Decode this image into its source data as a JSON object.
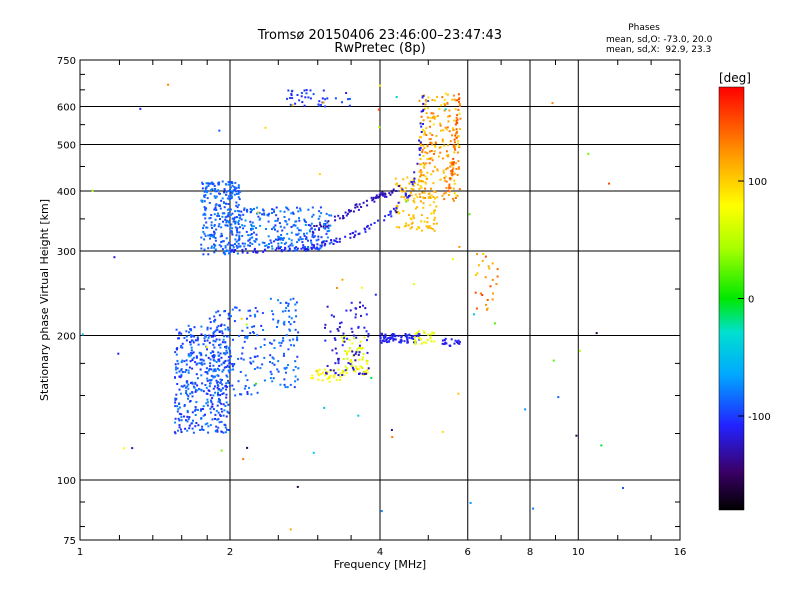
{
  "chart_data": {
    "type": "scatter",
    "title": "Tromsø 20150406 23:46:00–23:47:43",
    "subtitle": "RwPretec (8p)",
    "xlabel": "Frequency [MHz]",
    "ylabel": "Stationary phase Virtual Height [km]",
    "xscale": "log",
    "yscale": "log",
    "xlim": [
      1,
      16
    ],
    "ylim": [
      75,
      750
    ],
    "x_ticks": [
      1,
      2,
      4,
      6,
      8,
      10,
      16
    ],
    "x_tick_labels": [
      "1",
      "2",
      "4",
      "6",
      "8",
      "10",
      "16"
    ],
    "y_ticks": [
      75,
      100,
      200,
      300,
      400,
      500,
      600,
      750
    ],
    "y_tick_labels": [
      "75",
      "100",
      "200",
      "300",
      "400",
      "500",
      "600",
      "750"
    ],
    "grid": true,
    "phases_box": {
      "title": "Phases",
      "line1": "mean, sd,O: -73.0, 20.0",
      "line2": "mean, sd,X:  92.9, 23.3"
    },
    "colorbar": {
      "label": "[deg]",
      "range": [
        -180,
        180
      ],
      "ticks": [
        100,
        0,
        -100
      ],
      "tick_labels": [
        "100",
        "0",
        "-100"
      ]
    },
    "clusters": [
      {
        "fmin": 1.55,
        "fmax": 2.0,
        "hmin": 125,
        "hmax": 210,
        "count": 420,
        "phase_min": -110,
        "phase_max": -75
      },
      {
        "fmin": 1.8,
        "fmax": 2.35,
        "hmin": 150,
        "hmax": 230,
        "count": 140,
        "phase_min": -105,
        "phase_max": -75
      },
      {
        "fmin": 2.4,
        "fmax": 2.75,
        "hmin": 155,
        "hmax": 240,
        "count": 90,
        "phase_min": -100,
        "phase_max": -70
      },
      {
        "fmin": 1.75,
        "fmax": 2.1,
        "hmin": 295,
        "hmax": 420,
        "count": 280,
        "phase_min": -100,
        "phase_max": -75
      },
      {
        "fmin": 2.05,
        "fmax": 3.2,
        "hmin": 300,
        "hmax": 370,
        "count": 260,
        "phase_min": -105,
        "phase_max": -70
      },
      {
        "fmin": 2.9,
        "fmax": 3.4,
        "hmin": 160,
        "hmax": 170,
        "count": 35,
        "phase_min": 70,
        "phase_max": 90
      },
      {
        "fmin": 3.35,
        "fmax": 3.8,
        "hmin": 165,
        "hmax": 200,
        "count": 60,
        "phase_min": 55,
        "phase_max": 95
      },
      {
        "fmin": 3.1,
        "fmax": 3.8,
        "hmin": 165,
        "hmax": 235,
        "count": 80,
        "phase_min": -130,
        "phase_max": -105
      },
      {
        "fmin": 4.0,
        "fmax": 4.8,
        "hmin": 193,
        "hmax": 202,
        "count": 70,
        "phase_min": -120,
        "phase_max": -100
      },
      {
        "fmin": 4.7,
        "fmax": 5.2,
        "hmin": 192,
        "hmax": 205,
        "count": 25,
        "phase_min": 60,
        "phase_max": 80
      },
      {
        "fmin": 5.3,
        "fmax": 5.8,
        "hmin": 190,
        "hmax": 197,
        "count": 20,
        "phase_min": -120,
        "phase_max": -105
      },
      {
        "fmin": 4.3,
        "fmax": 5.2,
        "hmin": 330,
        "hmax": 430,
        "count": 110,
        "phase_min": 95,
        "phase_max": 115
      },
      {
        "fmin": 4.8,
        "fmax": 5.8,
        "hmin": 380,
        "hmax": 640,
        "count": 220,
        "phase_min": 90,
        "phase_max": 140
      },
      {
        "fmin": 2.6,
        "fmax": 3.5,
        "hmin": 600,
        "hmax": 650,
        "count": 40,
        "phase_min": -110,
        "phase_max": -90
      },
      {
        "fmin": 6.2,
        "fmax": 6.9,
        "hmin": 220,
        "hmax": 300,
        "count": 25,
        "phase_min": 100,
        "phase_max": 160
      },
      {
        "fmin": 1.0,
        "fmax": 12.5,
        "hmin": 76,
        "hmax": 700,
        "count": 70,
        "phase_min": -160,
        "phase_max": 160
      }
    ],
    "traces": [
      {
        "f": [
          2.0,
          2.4,
          2.8,
          3.1,
          3.4,
          3.7,
          4.0,
          4.3,
          4.6,
          4.8,
          4.9
        ],
        "h": [
          300,
          300,
          303,
          310,
          318,
          330,
          345,
          365,
          400,
          480,
          640
        ],
        "jitter": 0.012,
        "phase": -112,
        "count": 120
      },
      {
        "f": [
          2.9,
          3.2,
          3.5,
          3.8,
          4.0,
          4.2,
          4.5
        ],
        "h": [
          330,
          345,
          365,
          380,
          390,
          395,
          410
        ],
        "jitter": 0.015,
        "phase": -125,
        "count": 70
      },
      {
        "f": [
          5.5,
          5.6,
          5.7,
          5.75
        ],
        "h": [
          400,
          450,
          540,
          640
        ],
        "jitter": 0.01,
        "phase": 145,
        "count": 40
      }
    ]
  }
}
